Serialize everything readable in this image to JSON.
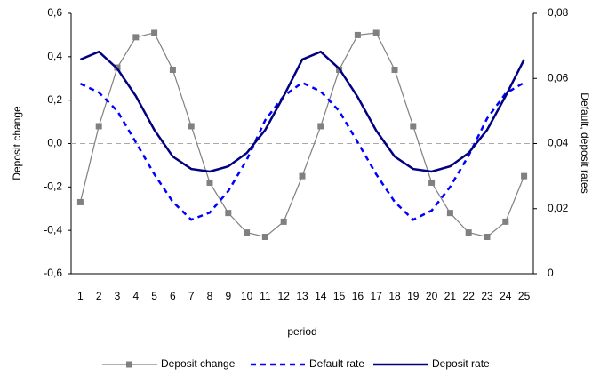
{
  "chart_data": {
    "type": "line",
    "x_label": "period",
    "y_label": "Deposit change",
    "y2_label": "Default, deposit rates",
    "categories": [
      "1",
      "2",
      "3",
      "4",
      "5",
      "6",
      "7",
      "8",
      "9",
      "10",
      "11",
      "12",
      "13",
      "14",
      "15",
      "16",
      "17",
      "18",
      "19",
      "20",
      "21",
      "22",
      "23",
      "24",
      "25"
    ],
    "series": [
      {
        "name": "Deposit change",
        "color": "#808080",
        "marker": "square",
        "dash": false,
        "axis": "y",
        "values": [
          -0.27,
          0.08,
          0.35,
          0.49,
          0.51,
          0.34,
          0.08,
          -0.18,
          -0.32,
          -0.41,
          -0.43,
          -0.36,
          -0.15,
          0.08,
          0.34,
          0.5,
          0.51,
          0.34,
          0.08,
          -0.18,
          -0.32,
          -0.41,
          -0.43,
          -0.36,
          -0.15
        ]
      },
      {
        "name": "Default rate",
        "color": "#0000ff",
        "marker": null,
        "dash": true,
        "axis": "y2",
        "values": [
          0.0584,
          0.0557,
          0.05,
          0.0404,
          0.0306,
          0.0221,
          0.0166,
          0.0188,
          0.0254,
          0.035,
          0.0472,
          0.0546,
          0.0587,
          0.056,
          0.05,
          0.0404,
          0.0306,
          0.0221,
          0.0166,
          0.0194,
          0.0267,
          0.0363,
          0.0477,
          0.0554,
          0.0587
        ]
      },
      {
        "name": "Deposit rate",
        "color": "#000080",
        "marker": null,
        "dash": false,
        "axis": "y2",
        "values": [
          0.0658,
          0.0682,
          0.063,
          0.0546,
          0.0442,
          0.036,
          0.0322,
          0.0314,
          0.033,
          0.0371,
          0.0442,
          0.0546,
          0.0658,
          0.0682,
          0.063,
          0.0543,
          0.044,
          0.036,
          0.0322,
          0.0314,
          0.033,
          0.0371,
          0.0442,
          0.0546,
          0.0658
        ]
      }
    ],
    "ylim": [
      -0.6,
      0.6
    ],
    "yticks": [
      {
        "value": -0.6,
        "label": "-0,6"
      },
      {
        "value": -0.4,
        "label": "-0,4"
      },
      {
        "value": -0.2,
        "label": "-0,2"
      },
      {
        "value": 0,
        "label": "0,0"
      },
      {
        "value": 0.2,
        "label": "0,2"
      },
      {
        "value": 0.4,
        "label": "0,4"
      },
      {
        "value": 0.6,
        "label": "0,6"
      }
    ],
    "y2lim": [
      0,
      0.08
    ],
    "y2ticks": [
      0,
      {
        "value": 0.02,
        "label": "0,02"
      },
      {
        "value": 0.04,
        "label": "0,04"
      },
      {
        "value": 0.06,
        "label": "0,06"
      },
      {
        "value": 0.08,
        "label": "0,08"
      }
    ],
    "zero_line": true,
    "legend": "bottom"
  }
}
